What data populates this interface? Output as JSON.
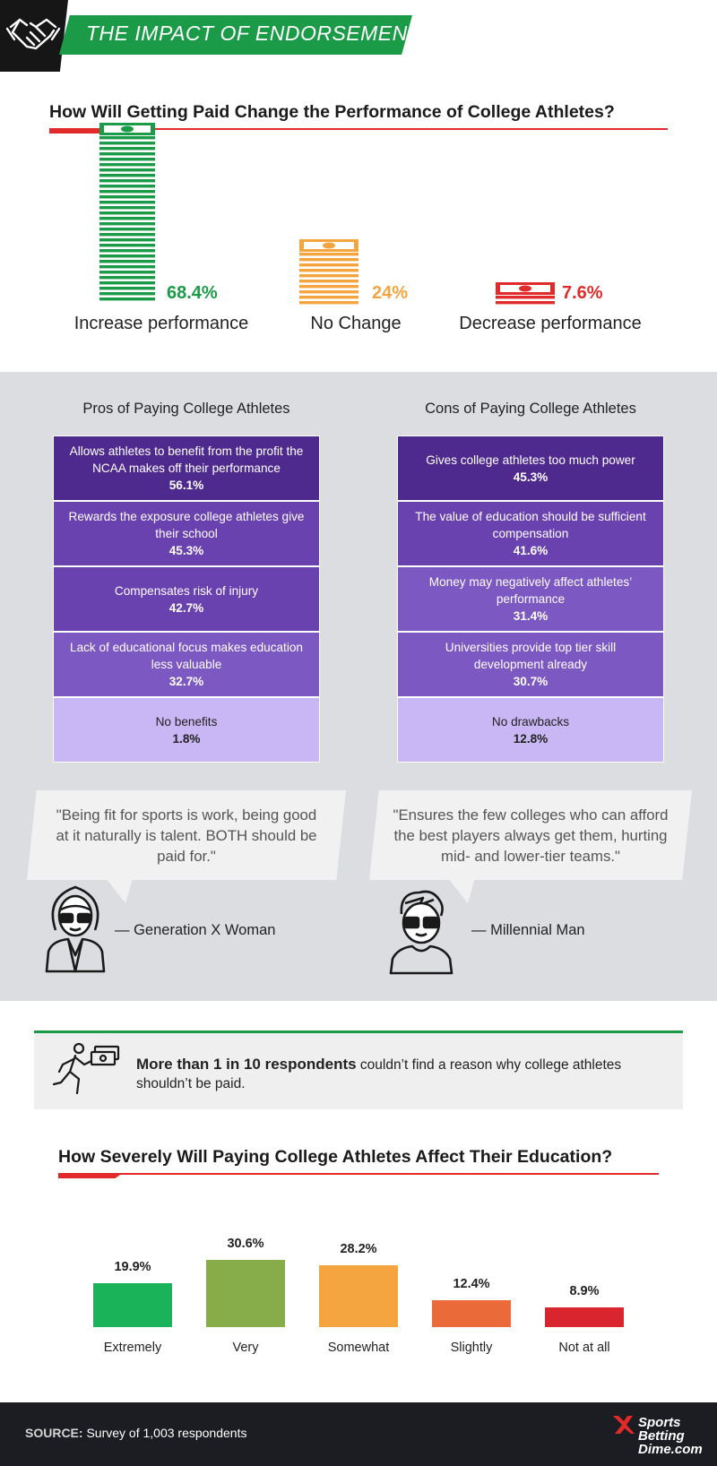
{
  "header": {
    "title": "THE IMPACT OF ENDORSEMENTS",
    "icon": "handshake-icon"
  },
  "performance": {
    "title": "How Will Getting Paid Change the Performance of College Athletes?"
  },
  "pros": {
    "title": "Pros of Paying College Athletes",
    "items": [
      {
        "label": "Allows athletes to benefit from the profit the NCAA makes off their performance",
        "value": "56.1%"
      },
      {
        "label": "Rewards the exposure college athletes give their school",
        "value": "45.3%"
      },
      {
        "label": "Compensates risk of injury",
        "value": "42.7%"
      },
      {
        "label": "Lack of educational focus makes education less valuable",
        "value": "32.7%"
      },
      {
        "label": "No benefits",
        "value": "1.8%"
      }
    ]
  },
  "cons": {
    "title": "Cons of Paying College Athletes",
    "items": [
      {
        "label": "Gives college athletes too much power",
        "value": "45.3%"
      },
      {
        "label": "The value of education should be sufficient compensation",
        "value": "41.6%"
      },
      {
        "label": "Money may negatively affect athletes’ performance",
        "value": "31.4%"
      },
      {
        "label": "Universities provide top tier skill development already",
        "value": "30.7%"
      },
      {
        "label": "No drawbacks",
        "value": "12.8%"
      }
    ]
  },
  "colors": {
    "green": "#1b9b48",
    "orange": "#f4a540",
    "red": "#e12b2b",
    "purple_dark": "#4e2a8e",
    "purple_mid": "#6a42b0",
    "purple_soft": "#7c58c2",
    "purple_light": "#c9b6f5"
  },
  "quotes": [
    {
      "text": "\"Being fit for sports is work, being good at it naturally is talent. BOTH should be paid for.\"",
      "author": "— Generation X Woman",
      "icon": "woman-avatar-icon"
    },
    {
      "text": "\"Ensures the few colleges who can afford the best players always get them, hurting mid- and lower-tier teams.\"",
      "author": "— Millennial Man",
      "icon": "man-avatar-icon"
    }
  ],
  "callout": {
    "bold": "More than 1 in 10 respondents",
    "rest": " couldn’t find a reason why college athletes shouldn’t be paid.",
    "icon": "runner-money-icon"
  },
  "education": {
    "title": "How Severely Will Paying College Athletes Affect Their Education?"
  },
  "chart_data": [
    {
      "type": "bar",
      "title": "How Will Getting Paid Change the Performance of College Athletes?",
      "categories": [
        "Increase performance",
        "No Change",
        "Decrease performance"
      ],
      "values": [
        68.4,
        24,
        7.6
      ],
      "labels": [
        "68.4%",
        "24%",
        "7.6%"
      ],
      "colors": [
        "#1b9b48",
        "#f4a540",
        "#e12b2b"
      ]
    },
    {
      "type": "bar",
      "title": "How Severely Will Paying College Athletes Affect Their Education?",
      "categories": [
        "Extremely",
        "Very",
        "Somewhat",
        "Slightly",
        "Not at all"
      ],
      "values": [
        19.9,
        30.6,
        28.2,
        12.4,
        8.9
      ],
      "labels": [
        "19.9%",
        "30.6%",
        "28.2%",
        "12.4%",
        "8.9%"
      ],
      "colors": [
        "#1bb35a",
        "#87ad4b",
        "#f4a540",
        "#ea6a3a",
        "#d9262e"
      ]
    }
  ],
  "footer": {
    "source_label": "SOURCE:",
    "source_text": " Survey of 1,003 respondents",
    "logo": [
      "Sports",
      "Betting",
      "Dime.com"
    ]
  }
}
